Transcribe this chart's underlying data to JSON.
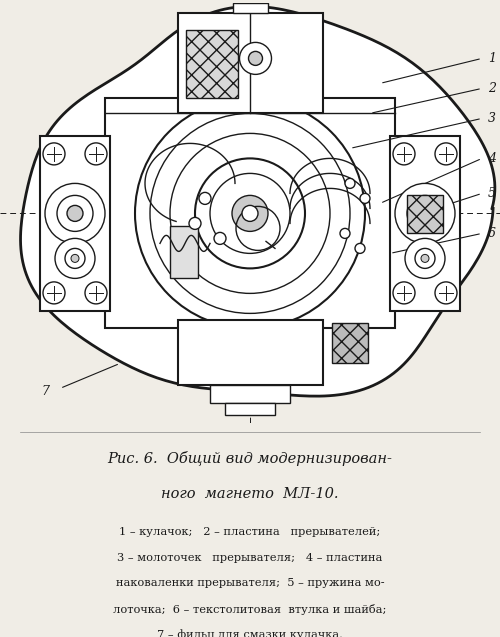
{
  "bg_color": "#f0ede6",
  "title_line1": "Рис. 6.  Общий вид модернизирован-",
  "title_line2": "ного  магнето  МЛ-10.",
  "caption_line1": "1 – кулачок;   2 – пластина   прерывателей;",
  "caption_line2": "3 – молоточек   прерывателя;   4 – пластина",
  "caption_line3": "наковаленки прерывателя;  5 – пружина мо-",
  "caption_line4": "лоточка;  6 – текстолитовая  втулка и шайба;",
  "caption_line5": "7 – фильц для смазки кулачка.",
  "lc": "#1a1a1a",
  "bg_white": "#ffffff",
  "gray_light": "#cccccc",
  "gray_mid": "#999999"
}
